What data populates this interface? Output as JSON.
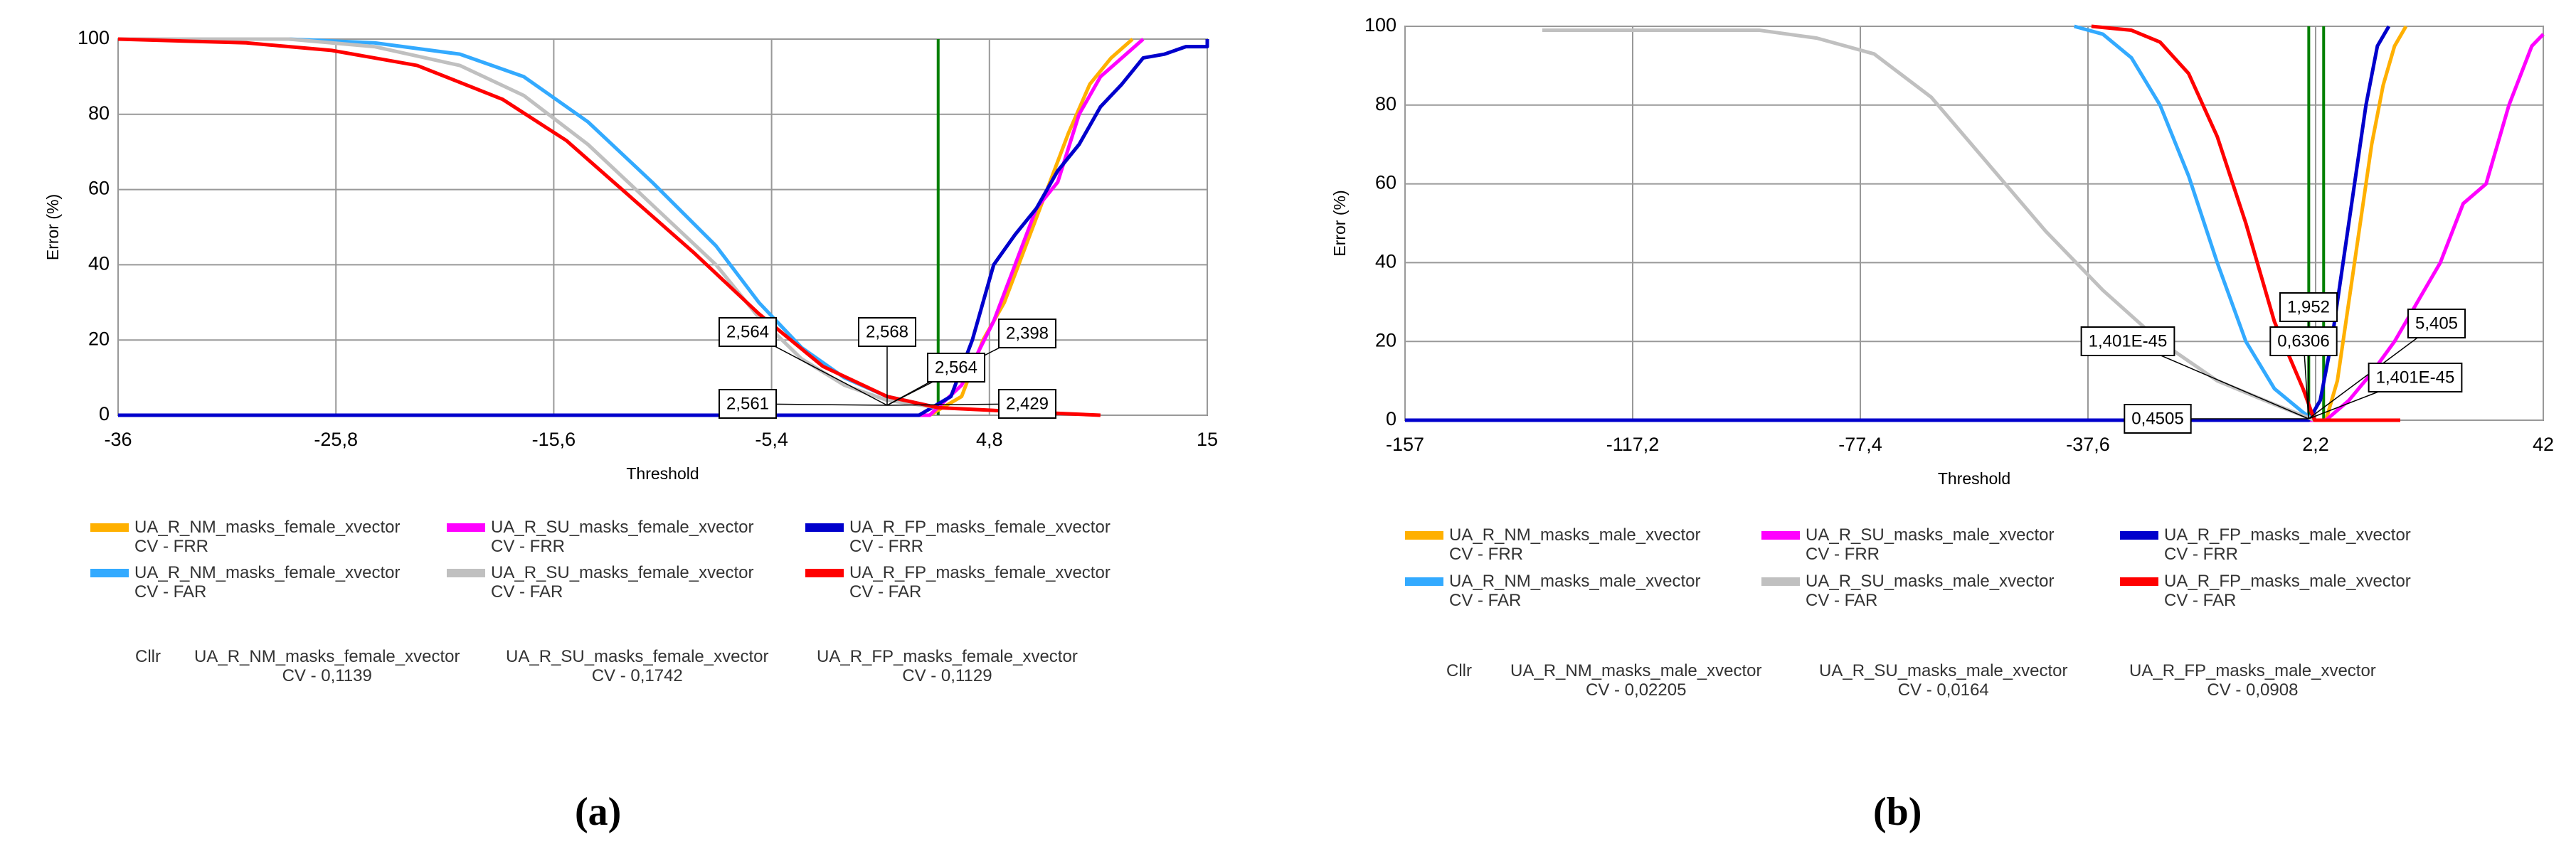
{
  "chart_data": [
    {
      "type": "line",
      "panel_label": "(a)",
      "xlabel": "Threshold",
      "ylabel": "Error (%)",
      "xlim": [
        -36,
        15
      ],
      "xticks": [
        -36,
        {
          "value": -25.8,
          "label": "-25,8"
        },
        {
          "value": -15.6,
          "label": "-15,6"
        },
        {
          "value": -5.4,
          "label": "-5,4"
        },
        {
          "value": 4.8,
          "label": "4,8"
        },
        15
      ],
      "ylim": [
        0,
        100
      ],
      "yticks": [
        0,
        20,
        40,
        60,
        80,
        100
      ],
      "grid": true,
      "marker_x": [
        2.4
      ],
      "marker_color": "#008000",
      "annotations": [
        "2,564",
        "2,568",
        "2,398",
        "2,564",
        "2,561",
        "2,429"
      ],
      "series": [
        {
          "name": "UA_R_NM_masks_female_xvector\nCV - FRR",
          "color": "#ffb000",
          "x": [
            -36,
            2,
            3.5,
            4.5,
            5.5,
            6.5,
            7.5,
            8.5,
            9.5,
            10.5,
            11.5
          ],
          "values": [
            0,
            0,
            5,
            20,
            30,
            45,
            60,
            75,
            88,
            95,
            100
          ]
        },
        {
          "name": "UA_R_SU_masks_female_xvector\nCV - FRR",
          "color": "#ff00ff",
          "x": [
            -36,
            2,
            3.5,
            5,
            6,
            7,
            8,
            9,
            10,
            11,
            12
          ],
          "values": [
            0,
            0,
            8,
            25,
            40,
            55,
            62,
            80,
            90,
            95,
            100
          ]
        },
        {
          "name": "UA_R_FP_masks_female_xvector\nCV - FRR",
          "color": "#0000cc",
          "x": [
            -36,
            1.5,
            3,
            4,
            5,
            6,
            7,
            8,
            9,
            10,
            11,
            12,
            13,
            14,
            15,
            15
          ],
          "values": [
            0,
            0,
            5,
            20,
            40,
            48,
            55,
            65,
            72,
            82,
            88,
            95,
            96,
            98,
            98,
            100
          ]
        },
        {
          "name": "UA_R_NM_masks_female_xvector\nCV - FAR",
          "color": "#33aaff",
          "x": [
            -36,
            -28,
            -24,
            -20,
            -17,
            -14,
            -11,
            -8,
            -6,
            -4,
            -2,
            0,
            2.4
          ],
          "values": [
            100,
            100,
            99,
            96,
            90,
            78,
            62,
            45,
            30,
            18,
            10,
            5,
            2
          ]
        },
        {
          "name": "UA_R_SU_masks_female_xvector\nCV - FAR",
          "color": "#c0c0c0",
          "x": [
            -36,
            -28,
            -24,
            -20,
            -17,
            -14,
            -11,
            -8,
            -6,
            -4,
            -2,
            0,
            2.4
          ],
          "values": [
            100,
            100,
            98,
            93,
            85,
            72,
            56,
            40,
            26,
            15,
            8,
            4,
            2
          ]
        },
        {
          "name": "UA_R_FP_masks_female_xvector\nCV - FAR",
          "color": "#ff0000",
          "x": [
            -36,
            -30,
            -26,
            -22,
            -18,
            -15,
            -12,
            -9,
            -6,
            -3,
            0,
            2.4,
            6,
            10
          ],
          "values": [
            100,
            99,
            97,
            93,
            84,
            73,
            58,
            43,
            27,
            13,
            5,
            2,
            1,
            0
          ]
        }
      ],
      "cllr": {
        "label": "Cllr",
        "items": [
          "UA_R_NM_masks_female_xvector\nCV - 0,1139",
          "UA_R_SU_masks_female_xvector\nCV - 0,1742",
          "UA_R_FP_masks_female_xvector\nCV - 0,1129"
        ]
      }
    },
    {
      "type": "line",
      "panel_label": "(b)",
      "xlabel": "Threshold",
      "ylabel": "Error (%)",
      "xlim": [
        -157,
        42
      ],
      "xticks": [
        -157,
        {
          "value": -117.2,
          "label": "-117,2"
        },
        {
          "value": -77.4,
          "label": "-77,4"
        },
        {
          "value": -37.6,
          "label": "-37,6"
        },
        {
          "value": 2.2,
          "label": "2,2"
        },
        42
      ],
      "ylim": [
        0,
        100
      ],
      "yticks": [
        0,
        20,
        40,
        60,
        80,
        100
      ],
      "grid": true,
      "marker_x": [
        1.0,
        3.6
      ],
      "marker_color": "#008000",
      "annotations": [
        "1,952",
        "1,401E-45",
        "0,6306",
        "5,405",
        "1,401E-45",
        "0,4505"
      ],
      "series": [
        {
          "name": "UA_R_NM_masks_male_xvector\nCV - FRR",
          "color": "#ffb000",
          "x": [
            -157,
            4,
            6,
            8,
            10,
            12,
            14,
            16,
            18
          ],
          "values": [
            0,
            0,
            10,
            30,
            50,
            70,
            85,
            95,
            100
          ]
        },
        {
          "name": "UA_R_SU_masks_male_xvector\nCV - FRR",
          "color": "#ff00ff",
          "x": [
            -157,
            4,
            8,
            12,
            16,
            20,
            24,
            28,
            32,
            36,
            40,
            42
          ],
          "values": [
            0,
            0,
            5,
            12,
            20,
            30,
            40,
            55,
            60,
            80,
            95,
            98
          ]
        },
        {
          "name": "UA_R_FP_masks_male_xvector\nCV - FRR",
          "color": "#0000cc",
          "x": [
            -157,
            1,
            3,
            5,
            7,
            9,
            11,
            13,
            15
          ],
          "values": [
            0,
            0,
            5,
            20,
            40,
            60,
            80,
            95,
            100
          ]
        },
        {
          "name": "UA_R_NM_masks_male_xvector\nCV - FAR",
          "color": "#33aaff",
          "x": [
            -40,
            -35,
            -30,
            -25,
            -20,
            -15,
            -10,
            -5,
            0,
            2
          ],
          "values": [
            100,
            98,
            92,
            80,
            62,
            40,
            20,
            8,
            2,
            0
          ]
        },
        {
          "name": "UA_R_SU_masks_male_xvector\nCV - FAR",
          "color": "#c0c0c0",
          "x": [
            -133,
            -95,
            -85,
            -75,
            -65,
            -55,
            -45,
            -35,
            -25,
            -15,
            -5,
            2
          ],
          "values": [
            99,
            99,
            97,
            93,
            82,
            65,
            48,
            33,
            20,
            10,
            4,
            0
          ]
        },
        {
          "name": "UA_R_FP_masks_male_xvector\nCV - FAR",
          "color": "#ff0000",
          "x": [
            -37,
            -30,
            -25,
            -20,
            -15,
            -10,
            -5,
            0,
            2,
            17
          ],
          "values": [
            100,
            99,
            96,
            88,
            72,
            50,
            25,
            8,
            0,
            0
          ]
        }
      ],
      "cllr": {
        "label": "Cllr",
        "items": [
          "UA_R_NM_masks_male_xvector\nCV - 0,02205",
          "UA_R_SU_masks_male_xvector\nCV - 0,0164",
          "UA_R_FP_masks_male_xvector\nCV - 0,0908"
        ]
      }
    }
  ]
}
